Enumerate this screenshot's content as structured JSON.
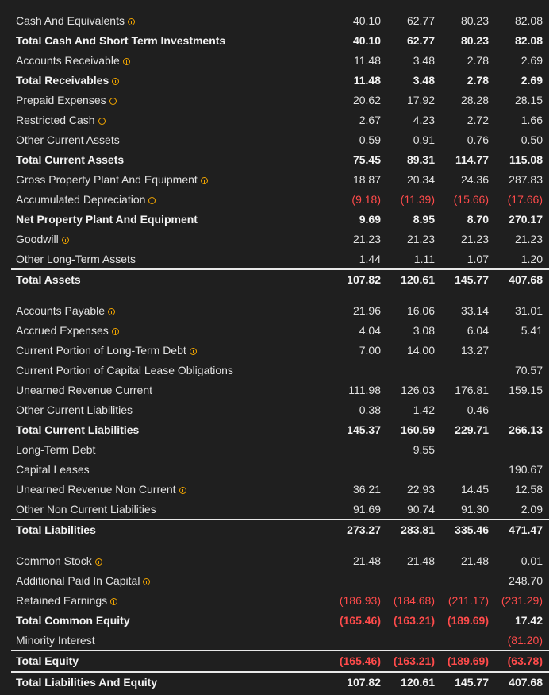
{
  "colors": {
    "background": "#1f1f1f",
    "text": "#e2e2e2",
    "negative": "#ff4b4b",
    "info_icon": "#f0a400",
    "divider": "#e8e8e8"
  },
  "rows": [
    {
      "label": "Cash And Equivalents",
      "info": true,
      "bold": false,
      "values": [
        "40.10",
        "62.77",
        "80.23",
        "82.08"
      ],
      "neg": [
        false,
        false,
        false,
        false
      ]
    },
    {
      "label": "Total Cash And Short Term Investments",
      "info": false,
      "bold": true,
      "values": [
        "40.10",
        "62.77",
        "80.23",
        "82.08"
      ],
      "neg": [
        false,
        false,
        false,
        false
      ]
    },
    {
      "label": "Accounts Receivable",
      "info": true,
      "bold": false,
      "values": [
        "11.48",
        "3.48",
        "2.78",
        "2.69"
      ],
      "neg": [
        false,
        false,
        false,
        false
      ]
    },
    {
      "label": "Total Receivables",
      "info": true,
      "bold": true,
      "values": [
        "11.48",
        "3.48",
        "2.78",
        "2.69"
      ],
      "neg": [
        false,
        false,
        false,
        false
      ]
    },
    {
      "label": "Prepaid Expenses",
      "info": true,
      "bold": false,
      "values": [
        "20.62",
        "17.92",
        "28.28",
        "28.15"
      ],
      "neg": [
        false,
        false,
        false,
        false
      ]
    },
    {
      "label": "Restricted Cash",
      "info": true,
      "bold": false,
      "values": [
        "2.67",
        "4.23",
        "2.72",
        "1.66"
      ],
      "neg": [
        false,
        false,
        false,
        false
      ]
    },
    {
      "label": "Other Current Assets",
      "info": false,
      "bold": false,
      "values": [
        "0.59",
        "0.91",
        "0.76",
        "0.50"
      ],
      "neg": [
        false,
        false,
        false,
        false
      ]
    },
    {
      "label": "Total Current Assets",
      "info": false,
      "bold": true,
      "values": [
        "75.45",
        "89.31",
        "114.77",
        "115.08"
      ],
      "neg": [
        false,
        false,
        false,
        false
      ]
    },
    {
      "label": "Gross Property Plant And Equipment",
      "info": true,
      "bold": false,
      "values": [
        "18.87",
        "20.34",
        "24.36",
        "287.83"
      ],
      "neg": [
        false,
        false,
        false,
        false
      ]
    },
    {
      "label": "Accumulated Depreciation",
      "info": true,
      "bold": false,
      "values": [
        "(9.18)",
        "(11.39)",
        "(15.66)",
        "(17.66)"
      ],
      "neg": [
        true,
        true,
        true,
        true
      ]
    },
    {
      "label": "Net Property Plant And Equipment",
      "info": false,
      "bold": true,
      "values": [
        "9.69",
        "8.95",
        "8.70",
        "270.17"
      ],
      "neg": [
        false,
        false,
        false,
        false
      ]
    },
    {
      "label": "Goodwill",
      "info": true,
      "bold": false,
      "values": [
        "21.23",
        "21.23",
        "21.23",
        "21.23"
      ],
      "neg": [
        false,
        false,
        false,
        false
      ]
    },
    {
      "label": "Other Long-Term Assets",
      "info": false,
      "bold": false,
      "values": [
        "1.44",
        "1.11",
        "1.07",
        "1.20"
      ],
      "neg": [
        false,
        false,
        false,
        false
      ]
    },
    {
      "label": "Total Assets",
      "info": false,
      "bold": true,
      "total_line": true,
      "values": [
        "107.82",
        "120.61",
        "145.77",
        "407.68"
      ],
      "neg": [
        false,
        false,
        false,
        false
      ]
    },
    {
      "label": "Accounts Payable",
      "info": true,
      "bold": false,
      "values": [
        "21.96",
        "16.06",
        "33.14",
        "31.01"
      ],
      "neg": [
        false,
        false,
        false,
        false
      ]
    },
    {
      "label": "Accrued Expenses",
      "info": true,
      "bold": false,
      "values": [
        "4.04",
        "3.08",
        "6.04",
        "5.41"
      ],
      "neg": [
        false,
        false,
        false,
        false
      ]
    },
    {
      "label": "Current Portion of Long-Term Debt",
      "info": true,
      "bold": false,
      "values": [
        "7.00",
        "14.00",
        "13.27",
        ""
      ],
      "neg": [
        false,
        false,
        false,
        false
      ]
    },
    {
      "label": "Current Portion of Capital Lease Obligations",
      "info": false,
      "bold": false,
      "values": [
        "",
        "",
        "",
        "70.57"
      ],
      "neg": [
        false,
        false,
        false,
        false
      ]
    },
    {
      "label": "Unearned Revenue Current",
      "info": false,
      "bold": false,
      "values": [
        "111.98",
        "126.03",
        "176.81",
        "159.15"
      ],
      "neg": [
        false,
        false,
        false,
        false
      ]
    },
    {
      "label": "Other Current Liabilities",
      "info": false,
      "bold": false,
      "values": [
        "0.38",
        "1.42",
        "0.46",
        ""
      ],
      "neg": [
        false,
        false,
        false,
        false
      ]
    },
    {
      "label": "Total Current Liabilities",
      "info": false,
      "bold": true,
      "values": [
        "145.37",
        "160.59",
        "229.71",
        "266.13"
      ],
      "neg": [
        false,
        false,
        false,
        false
      ]
    },
    {
      "label": "Long-Term Debt",
      "info": false,
      "bold": false,
      "values": [
        "",
        "9.55",
        "",
        ""
      ],
      "neg": [
        false,
        false,
        false,
        false
      ]
    },
    {
      "label": "Capital Leases",
      "info": false,
      "bold": false,
      "values": [
        "",
        "",
        "",
        "190.67"
      ],
      "neg": [
        false,
        false,
        false,
        false
      ]
    },
    {
      "label": "Unearned Revenue Non Current",
      "info": true,
      "bold": false,
      "values": [
        "36.21",
        "22.93",
        "14.45",
        "12.58"
      ],
      "neg": [
        false,
        false,
        false,
        false
      ]
    },
    {
      "label": "Other Non Current Liabilities",
      "info": false,
      "bold": false,
      "values": [
        "91.69",
        "90.74",
        "91.30",
        "2.09"
      ],
      "neg": [
        false,
        false,
        false,
        false
      ]
    },
    {
      "label": "Total Liabilities",
      "info": false,
      "bold": true,
      "total_line": true,
      "values": [
        "273.27",
        "283.81",
        "335.46",
        "471.47"
      ],
      "neg": [
        false,
        false,
        false,
        false
      ]
    },
    {
      "label": "Common Stock",
      "info": true,
      "bold": false,
      "values": [
        "21.48",
        "21.48",
        "21.48",
        "0.01"
      ],
      "neg": [
        false,
        false,
        false,
        false
      ]
    },
    {
      "label": "Additional Paid In Capital",
      "info": true,
      "bold": false,
      "values": [
        "",
        "",
        "",
        "248.70"
      ],
      "neg": [
        false,
        false,
        false,
        false
      ]
    },
    {
      "label": "Retained Earnings",
      "info": true,
      "bold": false,
      "values": [
        "(186.93)",
        "(184.68)",
        "(211.17)",
        "(231.29)"
      ],
      "neg": [
        true,
        true,
        true,
        true
      ]
    },
    {
      "label": "Total Common Equity",
      "info": false,
      "bold": true,
      "values": [
        "(165.46)",
        "(163.21)",
        "(189.69)",
        "17.42"
      ],
      "neg": [
        true,
        true,
        true,
        false
      ]
    },
    {
      "label": "Minority Interest",
      "info": false,
      "bold": false,
      "values": [
        "",
        "",
        "",
        "(81.20)"
      ],
      "neg": [
        false,
        false,
        false,
        true
      ]
    },
    {
      "label": "Total Equity",
      "info": false,
      "bold": true,
      "total_line": true,
      "values": [
        "(165.46)",
        "(163.21)",
        "(189.69)",
        "(63.78)"
      ],
      "neg": [
        true,
        true,
        true,
        true
      ]
    },
    {
      "label": "Total Liabilities And Equity",
      "info": false,
      "bold": true,
      "total_line": true,
      "values": [
        "107.82",
        "120.61",
        "145.77",
        "407.68"
      ],
      "neg": [
        false,
        false,
        false,
        false
      ]
    }
  ]
}
